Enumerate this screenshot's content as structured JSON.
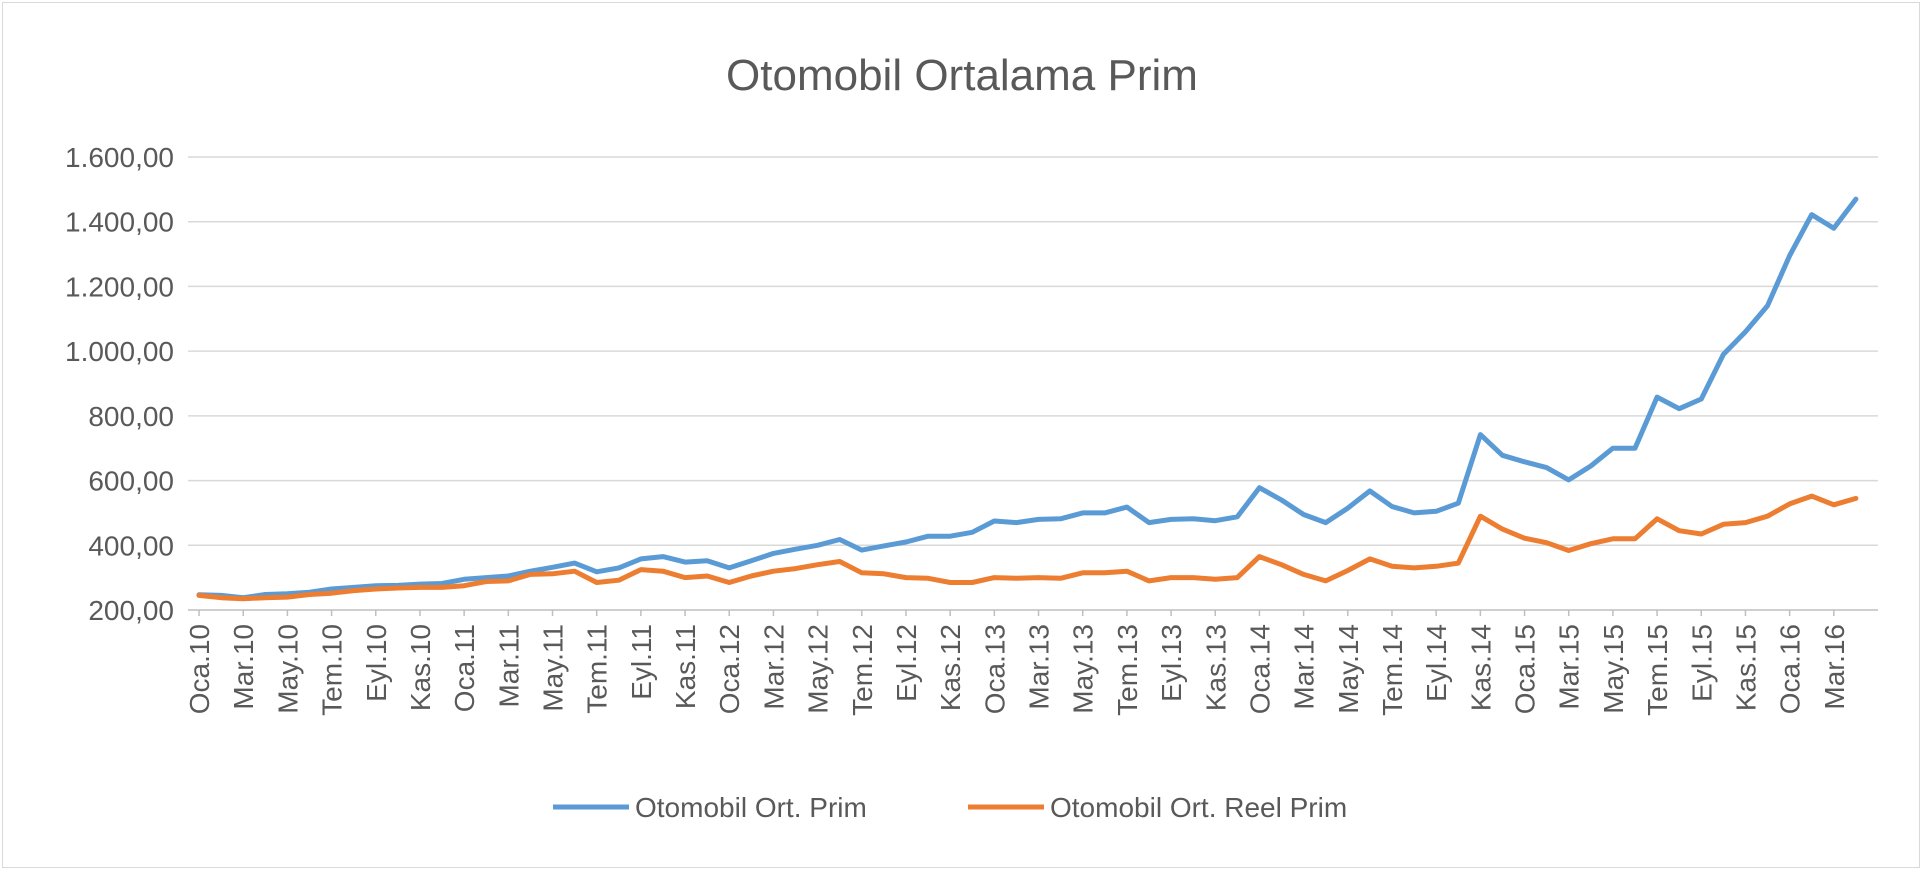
{
  "chart_data": {
    "type": "line",
    "title": "Otomobil Ortalama Prim",
    "xlabel": "",
    "ylabel": "",
    "ylim": [
      200,
      1600
    ],
    "y_ticks": [
      "200,00",
      "400,00",
      "600,00",
      "800,00",
      "1.000,00",
      "1.200,00",
      "1.400,00",
      "1.600,00"
    ],
    "y_tick_values": [
      200,
      400,
      600,
      800,
      1000,
      1200,
      1400,
      1600
    ],
    "grid": true,
    "legend_position": "bottom",
    "x_tick_labels": [
      "Oca.10",
      "Mar.10",
      "May.10",
      "Tem.10",
      "Eyl.10",
      "Kas.10",
      "Oca.11",
      "Mar.11",
      "May.11",
      "Tem.11",
      "Eyl.11",
      "Kas.11",
      "Oca.12",
      "Mar.12",
      "May.12",
      "Tem.12",
      "Eyl.12",
      "Kas.12",
      "Oca.13",
      "Mar.13",
      "May.13",
      "Tem.13",
      "Eyl.13",
      "Kas.13",
      "Oca.14",
      "Mar.14",
      "May.14",
      "Tem.14",
      "Eyl.14",
      "Kas.14",
      "Oca.15",
      "Mar.15",
      "May.15",
      "Tem.15",
      "Eyl.15",
      "Kas.15",
      "Oca.16",
      "Mar.16"
    ],
    "x": [
      "Oca.10",
      "Şub.10",
      "Mar.10",
      "Nis.10",
      "May.10",
      "Haz.10",
      "Tem.10",
      "Ağu.10",
      "Eyl.10",
      "Eki.10",
      "Kas.10",
      "Ara.10",
      "Oca.11",
      "Şub.11",
      "Mar.11",
      "Nis.11",
      "May.11",
      "Haz.11",
      "Tem.11",
      "Ağu.11",
      "Eyl.11",
      "Eki.11",
      "Kas.11",
      "Ara.11",
      "Oca.12",
      "Şub.12",
      "Mar.12",
      "Nis.12",
      "May.12",
      "Haz.12",
      "Tem.12",
      "Ağu.12",
      "Eyl.12",
      "Eki.12",
      "Kas.12",
      "Ara.12",
      "Oca.13",
      "Şub.13",
      "Mar.13",
      "Nis.13",
      "May.13",
      "Haz.13",
      "Tem.13",
      "Ağu.13",
      "Eyl.13",
      "Eki.13",
      "Kas.13",
      "Ara.13",
      "Oca.14",
      "Şub.14",
      "Mar.14",
      "Nis.14",
      "May.14",
      "Haz.14",
      "Tem.14",
      "Ağu.14",
      "Eyl.14",
      "Eki.14",
      "Kas.14",
      "Ara.14",
      "Oca.15",
      "Şub.15",
      "Mar.15",
      "Nis.15",
      "May.15",
      "Haz.15",
      "Tem.15",
      "Ağu.15",
      "Eyl.15",
      "Eki.15",
      "Kas.15",
      "Ara.15",
      "Oca.16",
      "Şub.16",
      "Mar.16",
      "Nis.16"
    ],
    "series": [
      {
        "name": "Otomobil Ort. Prim",
        "color": "#5b9bd5",
        "values": [
          247,
          245,
          238,
          248,
          250,
          255,
          265,
          270,
          275,
          276,
          280,
          282,
          295,
          300,
          305,
          320,
          332,
          345,
          318,
          330,
          358,
          365,
          348,
          352,
          330,
          352,
          375,
          388,
          400,
          418,
          385,
          398,
          410,
          428,
          428,
          440,
          475,
          470,
          480,
          482,
          500,
          500,
          518,
          470,
          480,
          482,
          476,
          488,
          578,
          540,
          495,
          470,
          515,
          568,
          520,
          500,
          505,
          530,
          742,
          678,
          658,
          640,
          602,
          645,
          700,
          700,
          858,
          822,
          852,
          990,
          1060,
          1140,
          1295,
          1422,
          1380,
          1470
        ]
      },
      {
        "name": "Otomobil Ort. Reel Prim",
        "color": "#ed7d31",
        "values": [
          245,
          238,
          235,
          238,
          240,
          248,
          252,
          260,
          265,
          268,
          270,
          270,
          275,
          288,
          290,
          310,
          312,
          320,
          285,
          292,
          325,
          320,
          300,
          305,
          285,
          305,
          320,
          328,
          340,
          350,
          315,
          312,
          300,
          298,
          285,
          285,
          300,
          298,
          300,
          298,
          315,
          315,
          320,
          290,
          300,
          300,
          295,
          300,
          365,
          340,
          310,
          290,
          322,
          358,
          335,
          330,
          335,
          345,
          490,
          450,
          422,
          408,
          384,
          405,
          420,
          420,
          482,
          445,
          435,
          465,
          470,
          490,
          528,
          552,
          525,
          545
        ]
      }
    ]
  }
}
